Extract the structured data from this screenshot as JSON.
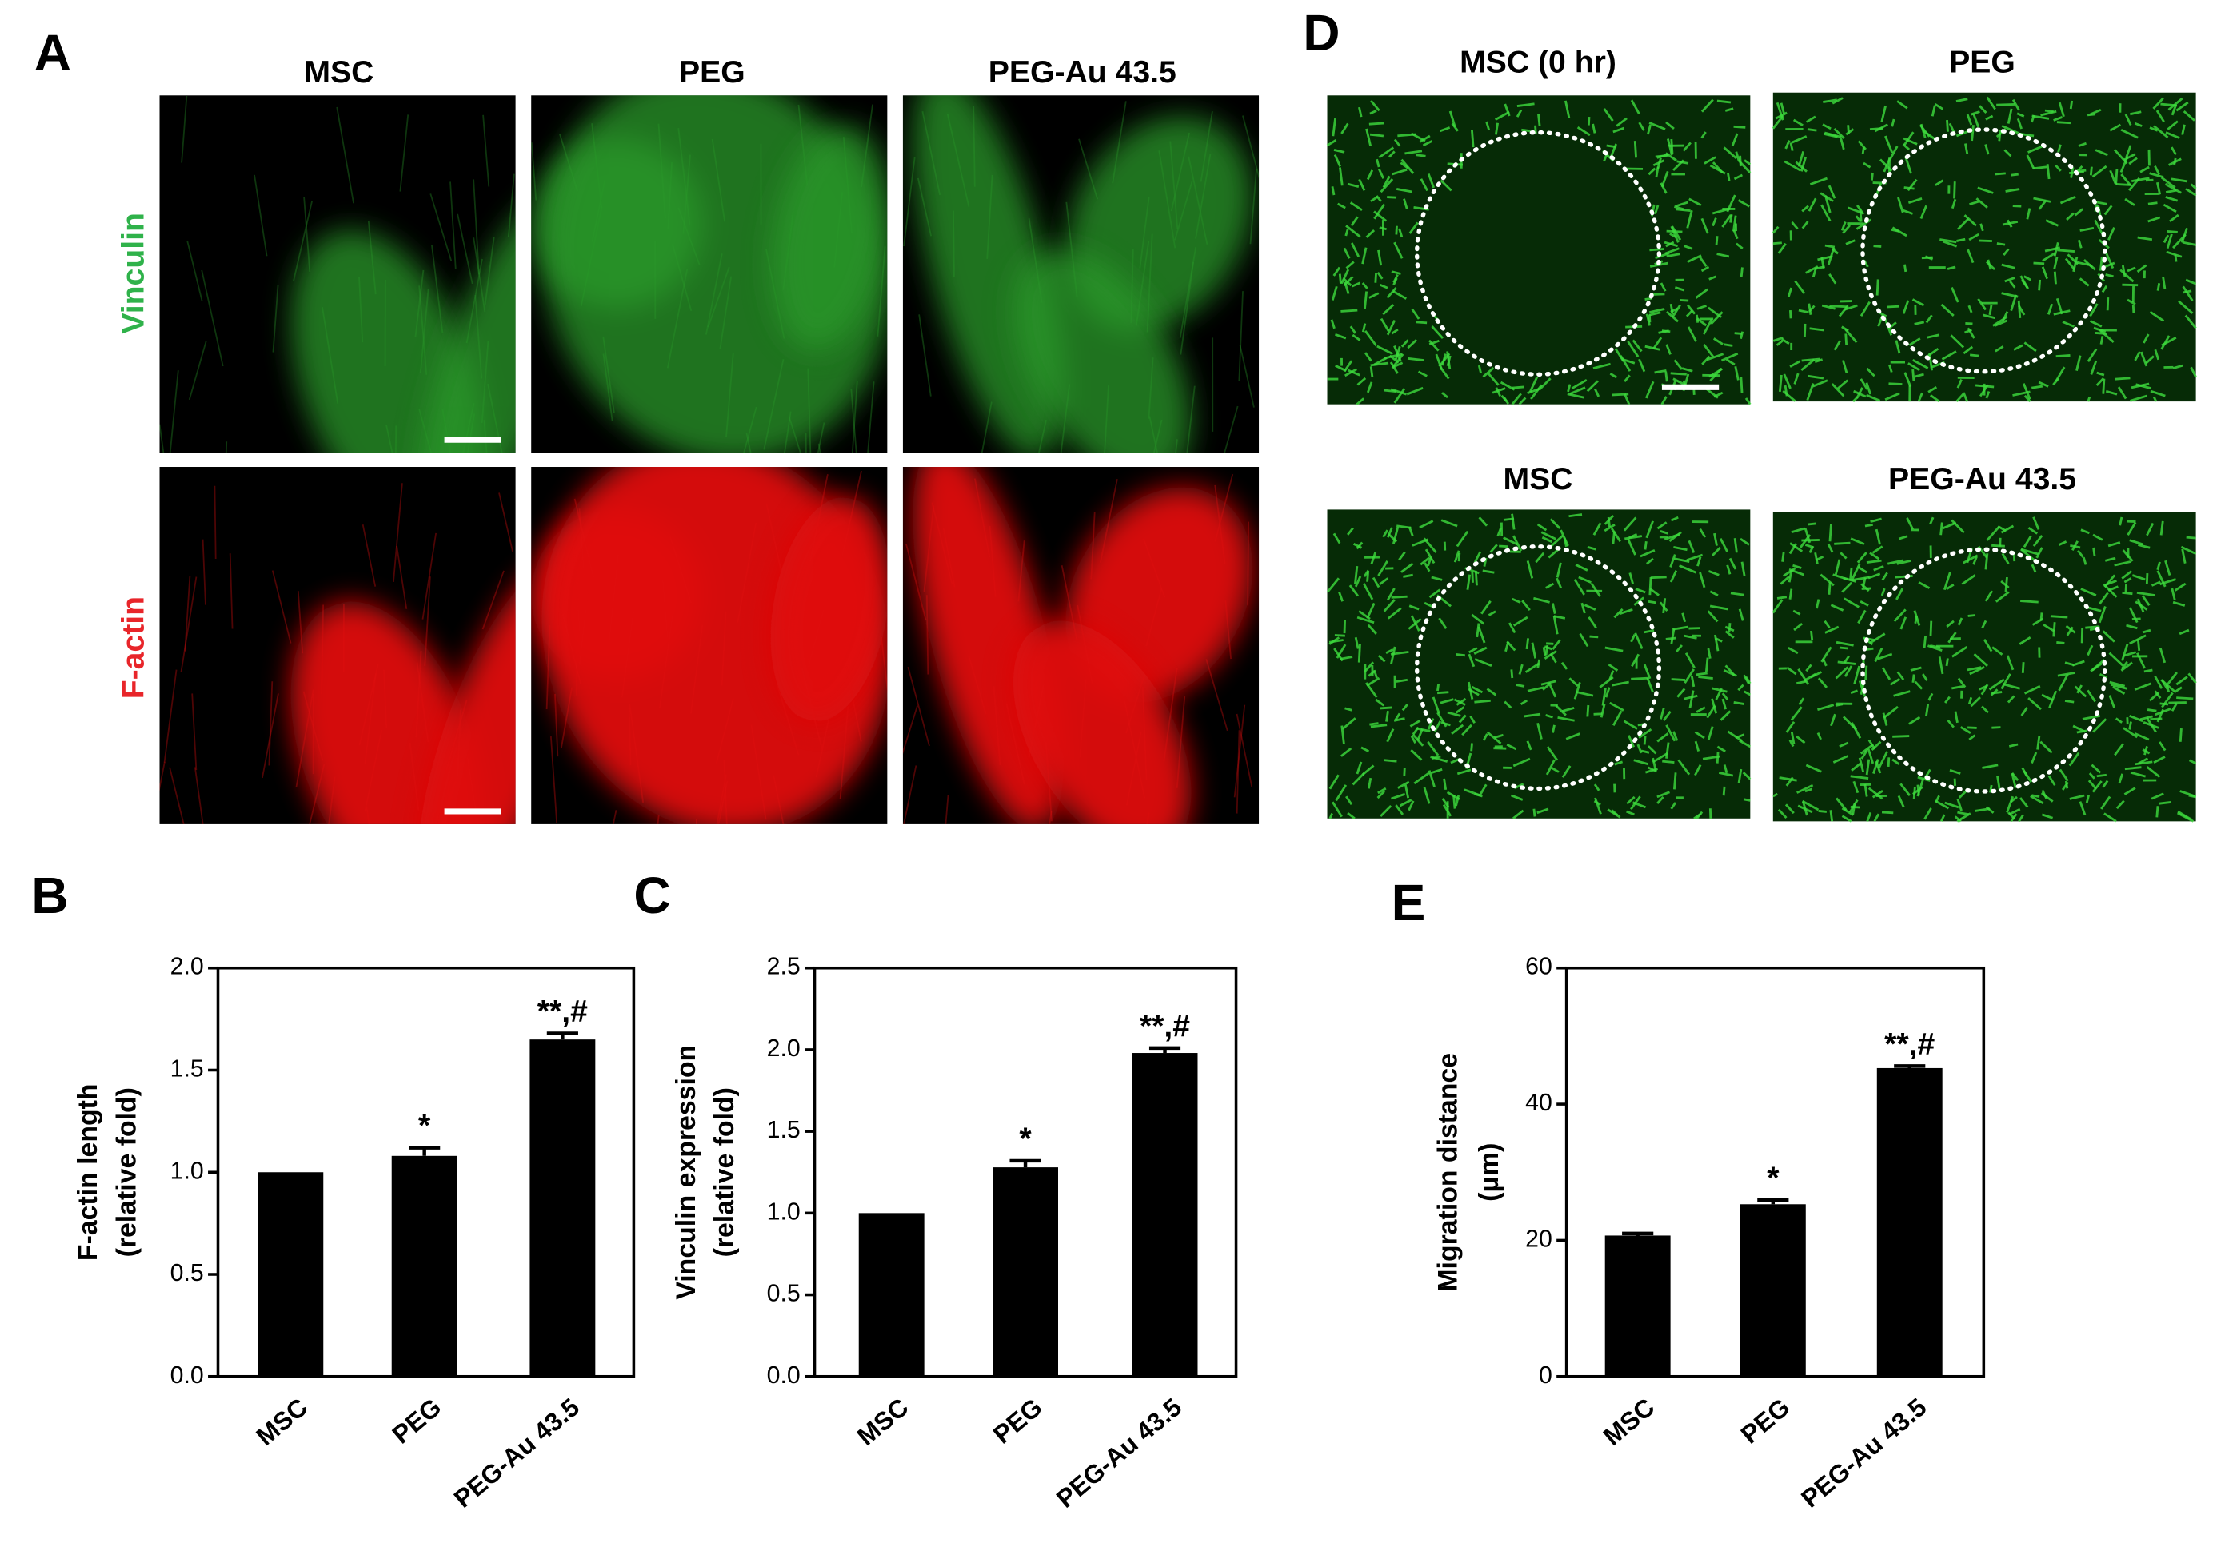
{
  "figure": {
    "panel_a": {
      "label": "A",
      "columns": [
        "MSC",
        "PEG",
        "PEG-Au 43.5"
      ],
      "rows": [
        "Vinculin",
        "F-actin"
      ]
    },
    "panel_d": {
      "label": "D",
      "titles": [
        "MSC (0 hr)",
        "PEG",
        "MSC",
        "PEG-Au 43.5"
      ]
    }
  },
  "chart_data": [
    {
      "panel": "B",
      "type": "bar",
      "y_label": [
        "F-actin length",
        "(relative fold)"
      ],
      "categories": [
        "MSC",
        "PEG",
        "PEG-Au 43.5"
      ],
      "values": [
        1.0,
        1.08,
        1.65
      ],
      "errors": [
        0,
        0.04,
        0.03
      ],
      "annotations": [
        null,
        "*",
        "**,#"
      ],
      "color": "#000000",
      "ylim": [
        0,
        2
      ],
      "yticks": [
        {
          "value": 0,
          "label": "0.0"
        },
        0.5,
        {
          "value": 1,
          "label": "1.0"
        },
        1.5,
        {
          "value": 2,
          "label": "2.0"
        }
      ]
    },
    {
      "panel": "C",
      "type": "bar",
      "y_label": [
        "Vinculin expression",
        "(relative fold)"
      ],
      "categories": [
        "MSC",
        "PEG",
        "PEG-Au 43.5"
      ],
      "values": [
        1.0,
        1.28,
        1.98
      ],
      "errors": [
        0,
        0.04,
        0.03
      ],
      "annotations": [
        null,
        "*",
        "**,#"
      ],
      "color": "#000000",
      "ylim": [
        0,
        2.5
      ],
      "yticks": [
        {
          "value": 0,
          "label": "0.0"
        },
        0.5,
        {
          "value": 1,
          "label": "1.0"
        },
        1.5,
        {
          "value": 2,
          "label": "2.0"
        },
        2.5
      ]
    },
    {
      "panel": "E",
      "type": "bar",
      "y_label": [
        "Migration distance",
        "(μm)"
      ],
      "categories": [
        "MSC",
        "PEG",
        "PEG-Au 43.5"
      ],
      "values": [
        20.7,
        25.3,
        45.3
      ],
      "errors": [
        0.3,
        0.6,
        0.3
      ],
      "annotations": [
        null,
        "*",
        "**,#"
      ],
      "color": "#000000",
      "ylim": [
        0,
        60
      ],
      "yticks": [
        0,
        20,
        40,
        60
      ]
    }
  ]
}
